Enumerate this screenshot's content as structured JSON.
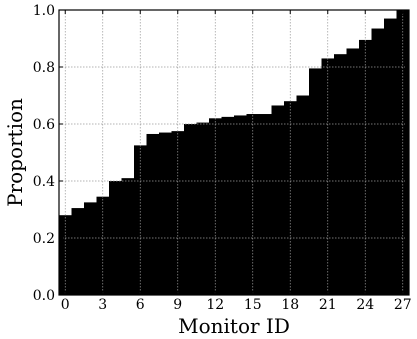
{
  "chart_data": {
    "type": "bar",
    "xlabel": "Monitor ID",
    "ylabel": "Proportion",
    "xlim": [
      -0.5,
      27.5
    ],
    "ylim": [
      0.0,
      1.0
    ],
    "x_ticks": [
      0,
      3,
      6,
      9,
      12,
      15,
      18,
      21,
      24,
      27
    ],
    "x_tick_labels": [
      "0",
      "3",
      "6",
      "9",
      "12",
      "15",
      "18",
      "21",
      "24",
      "27"
    ],
    "y_ticks": [
      0.0,
      0.2,
      0.4,
      0.6,
      0.8,
      1.0
    ],
    "y_tick_labels": [
      "0.0",
      "0.2",
      "0.4",
      "0.6",
      "0.8",
      "1.0"
    ],
    "grid": true,
    "bar_color": "#000000",
    "categories": [
      0,
      1,
      2,
      3,
      4,
      5,
      6,
      7,
      8,
      9,
      10,
      11,
      12,
      13,
      14,
      15,
      16,
      17,
      18,
      19,
      20,
      21,
      22,
      23,
      24,
      25,
      26,
      27
    ],
    "values": [
      0.28,
      0.305,
      0.325,
      0.345,
      0.4,
      0.41,
      0.525,
      0.565,
      0.57,
      0.575,
      0.6,
      0.605,
      0.62,
      0.625,
      0.63,
      0.635,
      0.635,
      0.665,
      0.68,
      0.7,
      0.795,
      0.83,
      0.845,
      0.865,
      0.895,
      0.935,
      0.97,
      1.0
    ]
  }
}
